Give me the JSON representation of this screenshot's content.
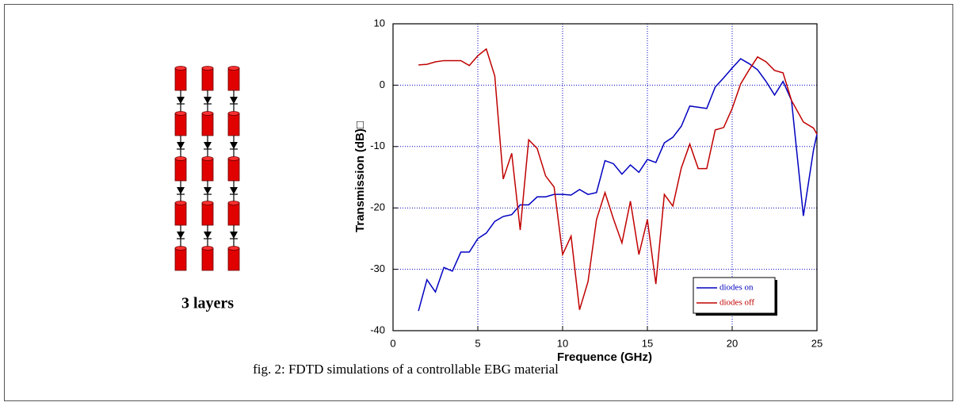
{
  "figure": {
    "caption": "fig. 2: FDTD simulations of a controllable EBG material",
    "illustration_label": "3 layers"
  },
  "chart_data": {
    "type": "line",
    "xlabel": "Frequence (GHz)",
    "ylabel": "Transmission (dB)□",
    "x": [
      1.5,
      2,
      2.5,
      3,
      3.5,
      4,
      4.5,
      5,
      5.5,
      6,
      6.5,
      7,
      7.5,
      8,
      8.5,
      9,
      9.5,
      10,
      10.5,
      11,
      11.5,
      12,
      12.5,
      13,
      13.5,
      14,
      14.5,
      15,
      15.5,
      16,
      16.5,
      17,
      17.5,
      18,
      18.5,
      19,
      19.5,
      20,
      20.5,
      21,
      21.5,
      22,
      22.5,
      23,
      23.5,
      24.2,
      24.8,
      25
    ],
    "series": [
      {
        "name": "diodes on",
        "color": "#0000c0",
        "values": [
          -36.8,
          -31.7,
          -33.7,
          -29.7,
          -30.3,
          -27.2,
          -27.2,
          -25,
          -24.1,
          -22.2,
          -21.4,
          -21.1,
          -19.5,
          -19.5,
          -18.2,
          -18.2,
          -17.8,
          -17.8,
          -17.9,
          -17,
          -17.8,
          -17.5,
          -12.3,
          -12.8,
          -14.5,
          -13,
          -14.2,
          -12.1,
          -12.6,
          -9.4,
          -8.5,
          -6.7,
          -3.4,
          -3.6,
          -3.8,
          -0.3,
          1.2,
          2.8,
          4.3,
          3.5,
          2.5,
          0.6,
          -1.6,
          0.6,
          -2.5,
          -21.3,
          -10.5,
          -8
        ]
      },
      {
        "name": "diodes off",
        "color": "#c00000",
        "values": [
          3.3,
          3.4,
          3.8,
          4,
          4,
          4,
          3.2,
          4.8,
          5.9,
          1.5,
          -15.3,
          -11.1,
          -23.6,
          -8.9,
          -10.3,
          -14.8,
          -16.6,
          -27.6,
          -24.6,
          -36.6,
          -32,
          -21.9,
          -17.5,
          -21.8,
          -25.7,
          -18.9,
          -27.6,
          -21.9,
          -32.4,
          -17.8,
          -19.7,
          -13.5,
          -9.6,
          -13.6,
          -13.6,
          -7.3,
          -6.9,
          -3.8,
          0.2,
          2.5,
          4.6,
          3.8,
          2.4,
          2,
          -2.5,
          -6,
          -7,
          -8
        ]
      }
    ],
    "xlim": [
      0,
      25
    ],
    "xticks": [
      0,
      5,
      10,
      15,
      20,
      25
    ],
    "ylim": [
      -40,
      10
    ],
    "yticks": [
      -40,
      -30,
      -20,
      -10,
      0,
      10
    ],
    "grid": true,
    "legend": "bottom-right"
  }
}
